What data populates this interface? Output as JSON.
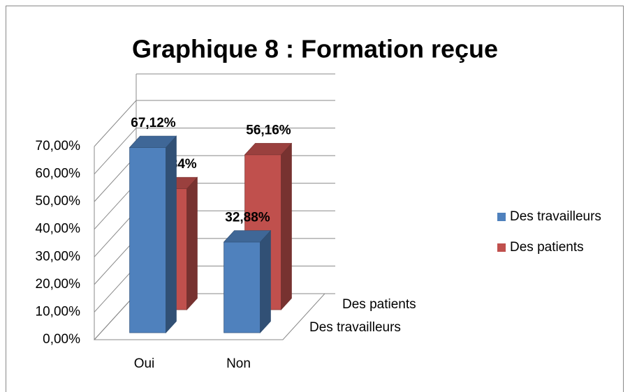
{
  "chart_data": {
    "type": "bar3d",
    "title": "Graphique 8 : Formation reçue",
    "categories": [
      "Oui",
      "Non"
    ],
    "series": [
      {
        "name": "Des travailleurs",
        "color": "#4f81bd",
        "values": [
          67.12,
          32.88
        ],
        "value_labels": [
          "67,12%",
          "32,88%"
        ]
      },
      {
        "name": "Des patients",
        "color": "#c0504d",
        "values": [
          43.84,
          56.16
        ],
        "value_labels": [
          "43,84%",
          "56,16%"
        ]
      }
    ],
    "ylim": [
      0,
      70
    ],
    "yticks": [
      {
        "value": 0,
        "label": "0,00%"
      },
      {
        "value": 10,
        "label": "10,00%"
      },
      {
        "value": 20,
        "label": "20,00%"
      },
      {
        "value": 30,
        "label": "30,00%"
      },
      {
        "value": 40,
        "label": "40,00%"
      },
      {
        "value": 50,
        "label": "50,00%"
      },
      {
        "value": 60,
        "label": "60,00%"
      },
      {
        "value": 70,
        "label": "70,00%"
      }
    ],
    "grid": true,
    "legend": "right"
  }
}
